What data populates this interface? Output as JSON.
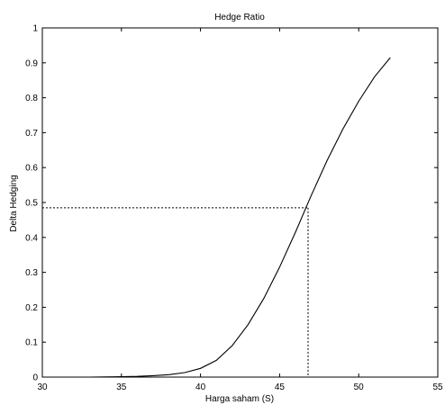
{
  "chart_data": {
    "type": "line",
    "title": "Hedge Ratio",
    "xlabel": "Harga saham  (S)",
    "ylabel": "Delta Hedging",
    "xlim": [
      30,
      55
    ],
    "ylim": [
      0,
      1
    ],
    "x_ticks": [
      "30",
      "35",
      "40",
      "45",
      "50",
      "55"
    ],
    "y_ticks": [
      "0",
      "0.1",
      "0.2",
      "0.3",
      "0.4",
      "0.5",
      "0.6",
      "0.7",
      "0.8",
      "0.9",
      "1"
    ],
    "grid": false,
    "series": [
      {
        "x": [
          33,
          34,
          35,
          36,
          37,
          38,
          39,
          40,
          41,
          42,
          43,
          44,
          45,
          46,
          47,
          48,
          49,
          50,
          51,
          52
        ],
        "y": [
          0.0,
          0.0005,
          0.001,
          0.002,
          0.004,
          0.007,
          0.013,
          0.025,
          0.048,
          0.09,
          0.15,
          0.225,
          0.315,
          0.415,
          0.52,
          0.62,
          0.71,
          0.79,
          0.86,
          0.915
        ]
      }
    ],
    "reference_point": {
      "x": 46.8,
      "y": 0.485
    },
    "colors": {
      "line": "#000000",
      "axis": "#000000",
      "background": "#ffffff"
    }
  }
}
